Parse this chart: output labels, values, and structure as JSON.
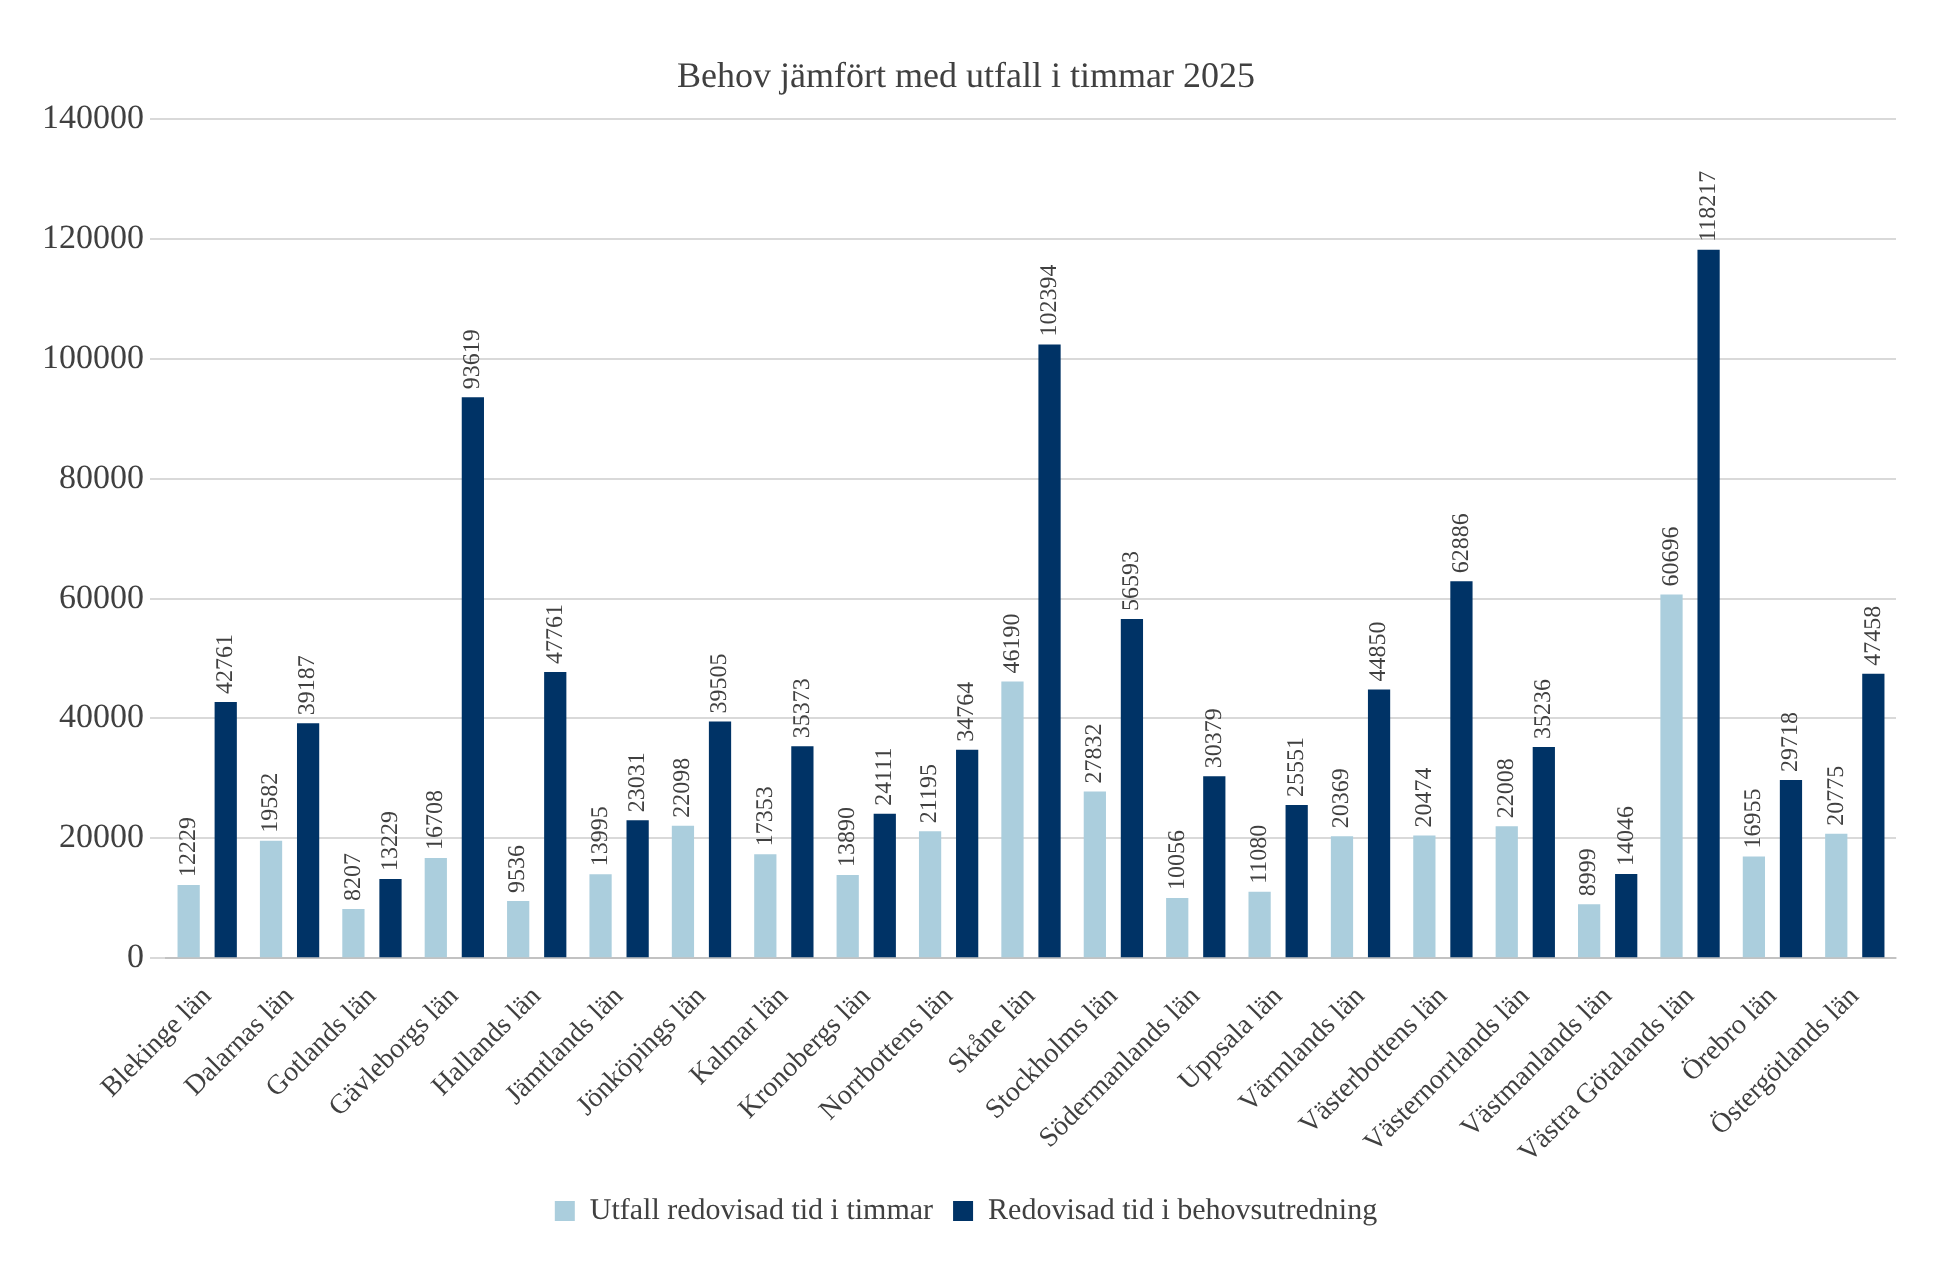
{
  "chart_data": {
    "type": "bar",
    "title": "Behov jämfört med utfall i timmar 2025",
    "categories": [
      "Blekinge län",
      "Dalarnas län",
      "Gotlands län",
      "Gävleborgs län",
      "Hallands län",
      "Jämtlands län",
      "Jönköpings län",
      "Kalmar län",
      "Kronobergs län",
      "Norrbottens län",
      "Skåne län",
      "Stockholms län",
      "Södermanlands län",
      "Uppsala län",
      "Värmlands län",
      "Västerbottens län",
      "Västernorrlands län",
      "Västmanlands län",
      "Västra Götalands län",
      "Örebro län",
      "Östergötlands län"
    ],
    "series": [
      {
        "name": "Utfall redovisad tid i timmar",
        "color": "#abcedd",
        "values": [
          12229,
          19582,
          8207,
          16708,
          9536,
          13995,
          22098,
          17353,
          13890,
          21195,
          46190,
          27832,
          10056,
          11080,
          20369,
          20474,
          22008,
          8999,
          60696,
          16955,
          20775
        ]
      },
      {
        "name": "Redovisad tid i behovsutredning",
        "color": "#003366",
        "values": [
          42761,
          39187,
          13229,
          93619,
          47761,
          23031,
          39505,
          35373,
          24111,
          34764,
          102394,
          56593,
          30379,
          25551,
          44850,
          62886,
          35236,
          14046,
          118217,
          29718,
          47458
        ]
      }
    ],
    "ylim": [
      0,
      140000
    ],
    "yticks": [
      0,
      20000,
      40000,
      60000,
      80000,
      100000,
      120000,
      140000
    ],
    "grid": "y",
    "legend": "bottom",
    "data_labels": true
  }
}
